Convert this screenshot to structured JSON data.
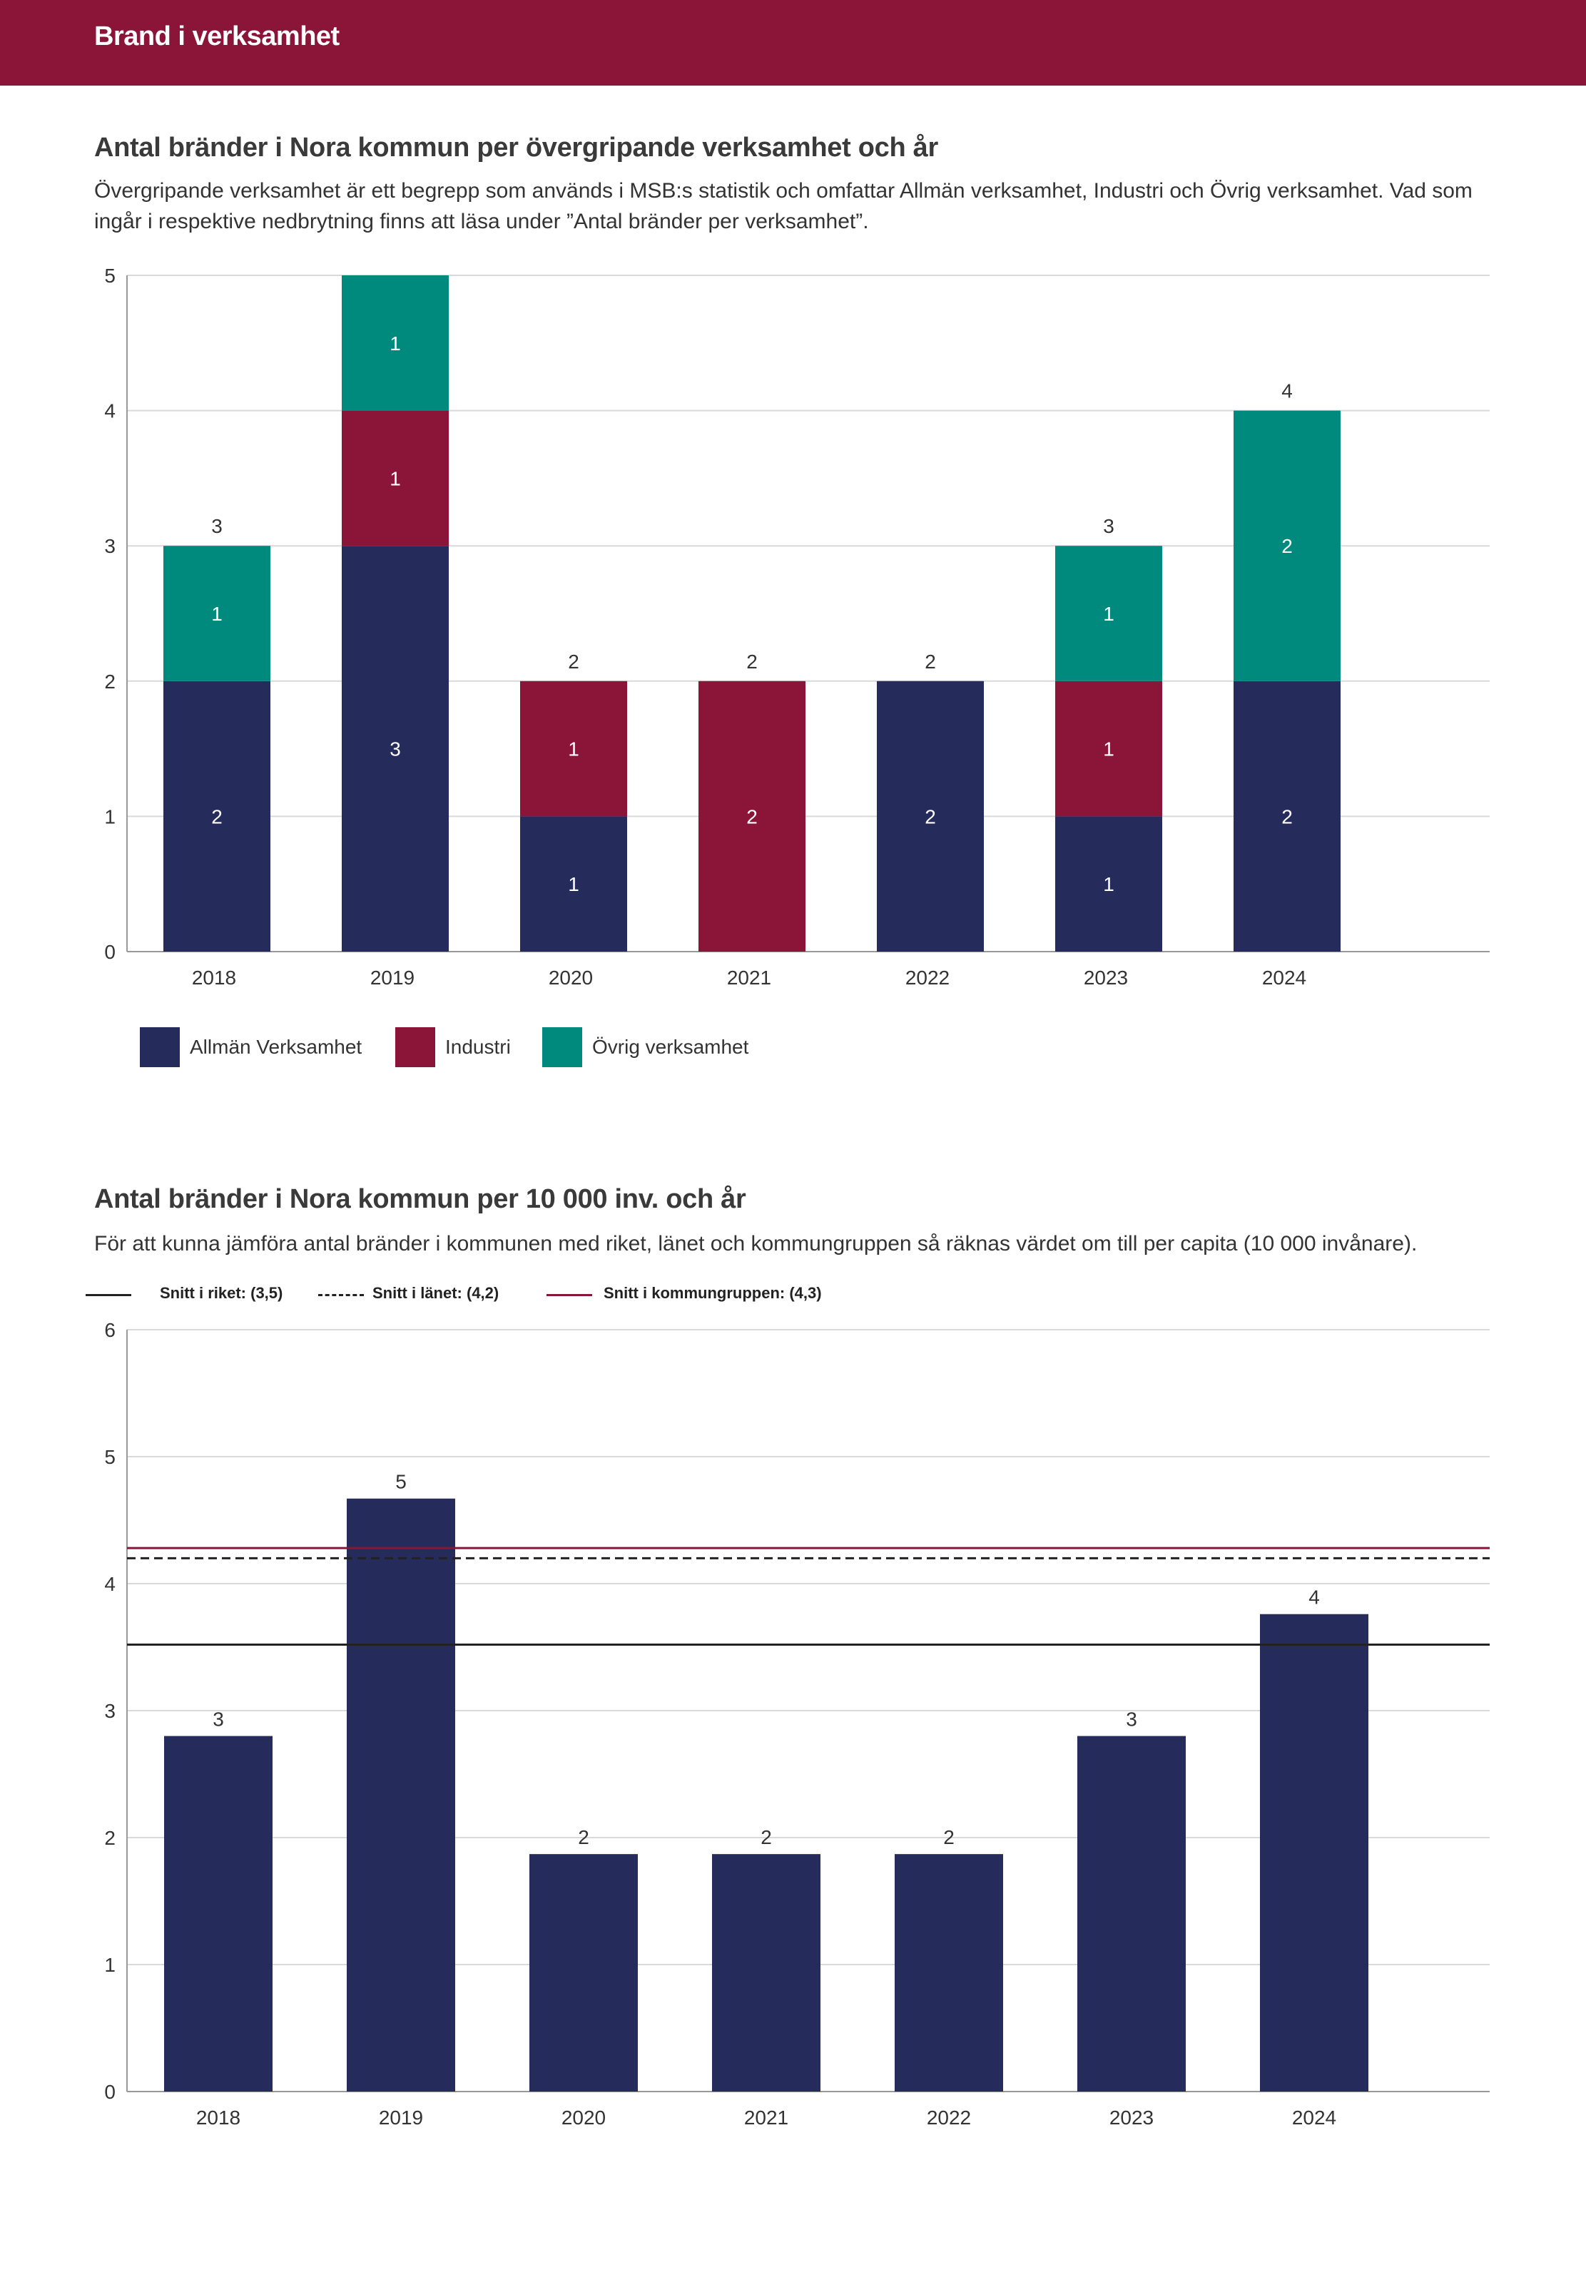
{
  "header": {
    "title": "Brand i verksamhet"
  },
  "section1": {
    "title": "Antal bränder i Nora kommun per övergripande verksamhet och år",
    "description": "Övergripande verksamhet är ett begrepp som används i MSB:s statistik och omfattar Allmän verksamhet, Industri och Övrig verksamhet. Vad som ingår i respektive nedbrytning finns att läsa under ”Antal bränder per verksamhet”."
  },
  "section2": {
    "title": "Antal bränder i Nora kommun per 10 000 inv. och år",
    "description": "För att kunna jämföra antal bränder i kommunen med riket, länet och kommungruppen så räknas värdet om till per capita (10 000 invånare)."
  },
  "colors": {
    "header": "#8b1538",
    "allman": "#252c5c",
    "industri": "#8b1538",
    "ovrig": "#008a7e",
    "grid": "#d9d9d9"
  },
  "chart_data": [
    {
      "type": "bar",
      "stacked": true,
      "title": "Antal bränder i Nora kommun per övergripande verksamhet och år",
      "categories": [
        "2018",
        "2019",
        "2020",
        "2021",
        "2022",
        "2023",
        "2024"
      ],
      "series": [
        {
          "name": "Allmän Verksamhet",
          "color": "#252c5c",
          "values": [
            2,
            3,
            1,
            0,
            2,
            1,
            2
          ]
        },
        {
          "name": "Industri",
          "color": "#8b1538",
          "values": [
            0,
            1,
            1,
            2,
            0,
            1,
            0
          ]
        },
        {
          "name": "Övrig verksamhet",
          "color": "#008a7e",
          "values": [
            1,
            1,
            0,
            0,
            0,
            1,
            2
          ]
        }
      ],
      "total_labels": [
        "3",
        "",
        "2",
        "2",
        "2",
        "3",
        "4"
      ],
      "ylim": [
        0,
        5
      ],
      "yticks": [
        0,
        1,
        2,
        3,
        4,
        5
      ],
      "grid": true,
      "legend": "bottom-left"
    },
    {
      "type": "bar",
      "title": "Antal bränder i Nora kommun per 10 000 inv. och år",
      "categories": [
        "2018",
        "2019",
        "2020",
        "2021",
        "2022",
        "2023",
        "2024"
      ],
      "values": [
        2.8,
        4.67,
        1.87,
        1.87,
        1.87,
        2.8,
        3.76
      ],
      "value_labels": [
        "3",
        "5",
        "2",
        "2",
        "2",
        "3",
        "4"
      ],
      "color": "#252c5c",
      "ylim": [
        0,
        6
      ],
      "yticks": [
        0,
        1,
        2,
        3,
        4,
        5,
        6
      ],
      "grid": true,
      "reference_lines": [
        {
          "label": "Snitt i riket: (3,5)",
          "value": 3.52,
          "style": "solid",
          "color": "#222222"
        },
        {
          "label": "Snitt i länet: (4,2)",
          "value": 4.2,
          "style": "dashed",
          "color": "#222222"
        },
        {
          "label": "Snitt i kommungruppen: (4,3)",
          "value": 4.28,
          "style": "solid",
          "color": "#8b1538"
        }
      ],
      "legend": "top-left"
    }
  ]
}
